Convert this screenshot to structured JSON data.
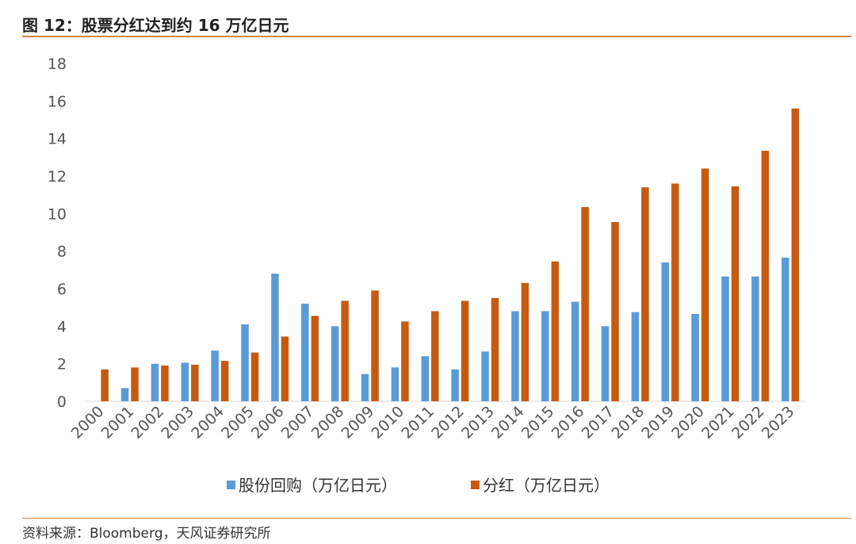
{
  "header": {
    "title": "图 12：股票分红达到约 16 万亿日元"
  },
  "footer": {
    "source": "资料来源：Bloomberg，天风证券研究所"
  },
  "colors": {
    "accent": "#d2863b",
    "buyback": "#5b9bd5",
    "dividend": "#c55a11"
  },
  "chart_data": {
    "type": "bar",
    "categories": [
      "2000",
      "2001",
      "2002",
      "2003",
      "2004",
      "2005",
      "2006",
      "2007",
      "2008",
      "2009",
      "2010",
      "2011",
      "2012",
      "2013",
      "2014",
      "2015",
      "2016",
      "2017",
      "2018",
      "2019",
      "2020",
      "2021",
      "2022",
      "2023"
    ],
    "series": [
      {
        "name": "股份回购（万亿日元）",
        "color": "#5b9bd5",
        "values": [
          0,
          0.7,
          2.0,
          2.05,
          2.7,
          4.1,
          6.8,
          5.2,
          4.0,
          1.45,
          1.8,
          2.4,
          1.7,
          2.65,
          4.8,
          4.8,
          5.3,
          4.0,
          4.75,
          7.4,
          4.65,
          6.65,
          6.65,
          7.65
        ]
      },
      {
        "name": "分红（万亿日元）",
        "color": "#c55a11",
        "values": [
          1.7,
          1.8,
          1.9,
          1.95,
          2.15,
          2.6,
          3.45,
          4.55,
          5.35,
          5.9,
          4.25,
          4.8,
          5.35,
          5.5,
          6.3,
          7.45,
          10.35,
          9.55,
          11.4,
          11.6,
          12.4,
          11.45,
          13.35,
          15.6
        ]
      }
    ],
    "y_ticks": [
      "0",
      "2",
      "4",
      "6",
      "8",
      "10",
      "12",
      "14",
      "16",
      "18"
    ],
    "ylim": [
      0,
      18
    ],
    "grid": false,
    "legend_position": "bottom-center",
    "xlabel": "",
    "ylabel": ""
  }
}
